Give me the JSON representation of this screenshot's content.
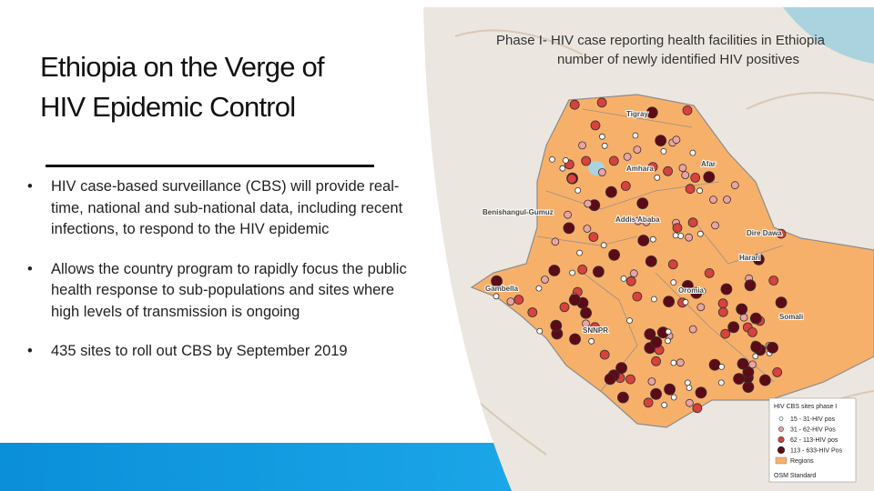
{
  "title": {
    "lines": [
      "Ethiopia on the Verge of",
      "HIV Epidemic Control"
    ]
  },
  "bullets": [
    "HIV case-based surveillance (CBS) will provide real-time, national and sub-national data, including recent infections, to respond to the HIV epidemic",
    "Allows the country program to rapidly focus the public health response to sub-populations and sites where high levels of transmission is ongoing",
    "435 sites to roll out CBS by September 2019"
  ],
  "map": {
    "title_lines": [
      "Phase I- HIV case reporting health facilities in Ethiopia",
      "number of newly identified HIV positives"
    ],
    "regions": [
      "Tigray",
      "Afar",
      "Amhara",
      "Benishangul-Gumuz",
      "Addis Ababa",
      "Dire Dawa",
      "Harari",
      "Gambella",
      "Oromia",
      "SNNPR",
      "Somali"
    ],
    "legend": {
      "title": "HIV CBS sites phase I",
      "entries": [
        "15 - 31-HIV pos",
        "31 - 62-HIV Pos",
        "62 - 113-HIV pos",
        "113 - 633-HIV Pos",
        "Regions"
      ],
      "footer": "OSM Standard"
    }
  }
}
